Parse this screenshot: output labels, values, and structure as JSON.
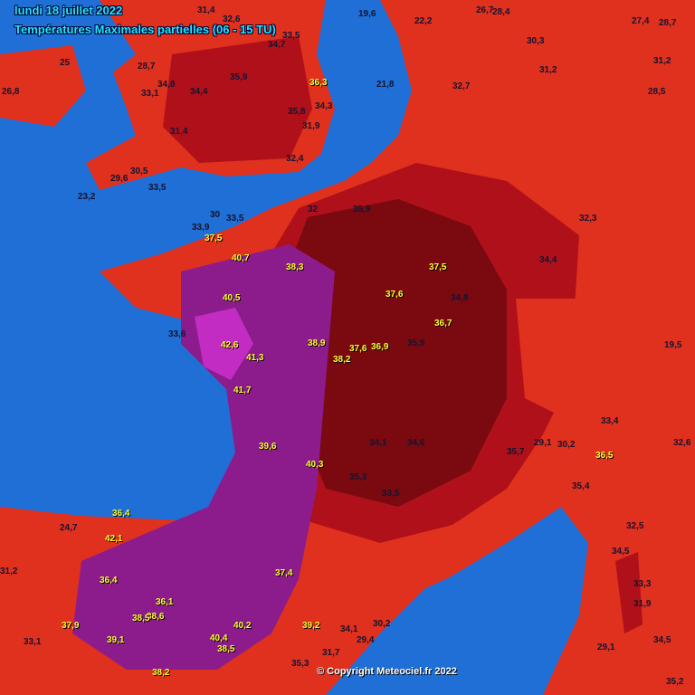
{
  "header": {
    "date": "lundi 18 juillet 2022",
    "subtitle": "Températures Maximales partielles (06 - 15 TU)"
  },
  "copyright": "© Copyright Meteociel.fr 2022",
  "colors": {
    "sea": "#1f6fd6",
    "warm": "#e0301e",
    "hot": "#b0101a",
    "very_hot": "#7a0a10",
    "extreme": "#8c1c8c",
    "peak": "#c22cc2",
    "label_hot": "#ffff30",
    "label_normal": "#141430"
  },
  "unit": "°C",
  "temperatures": [
    "31,4",
    "32,6",
    "34,7",
    "33,5",
    "19,6",
    "22,2",
    "26,7",
    "28,4",
    "27,4",
    "25",
    "28,7",
    "34,8",
    "35,9",
    "36,3",
    "26,8",
    "33,1",
    "34,4",
    "31,9",
    "34,3",
    "29,6",
    "30,5",
    "23,2",
    "33,5",
    "31,4",
    "35,8",
    "32,4",
    "21,8",
    "31,2",
    "30,3",
    "32,7",
    "28,5",
    "28,7",
    "30",
    "33,5",
    "32",
    "33,9",
    "37,5",
    "40,7",
    "38,3",
    "37,6",
    "35,9",
    "37,5",
    "34,8",
    "36,7",
    "33,6",
    "40,5",
    "42,6",
    "41,3",
    "38,9",
    "38,2",
    "37,6",
    "36,9",
    "35,9",
    "31,2",
    "32,3",
    "34,4",
    "33,4",
    "30,2",
    "36,5",
    "19,5",
    "32,6",
    "41,7",
    "39,6",
    "40,3",
    "35,3",
    "34,1",
    "34,6",
    "33,5",
    "29,1",
    "35,4",
    "35,7",
    "32,5",
    "34,5",
    "33,3",
    "31,9",
    "29,1",
    "34,5",
    "35,2",
    "42,1",
    "38,6",
    "36,4",
    "36,1",
    "38,5",
    "37,4",
    "40,2",
    "39,2",
    "34,1",
    "30,2",
    "38,5",
    "35,3",
    "31,7",
    "29,4",
    "37,9",
    "39,1",
    "38,2",
    "33,1",
    "36,4",
    "40,4",
    "31,2",
    "24,7"
  ]
}
